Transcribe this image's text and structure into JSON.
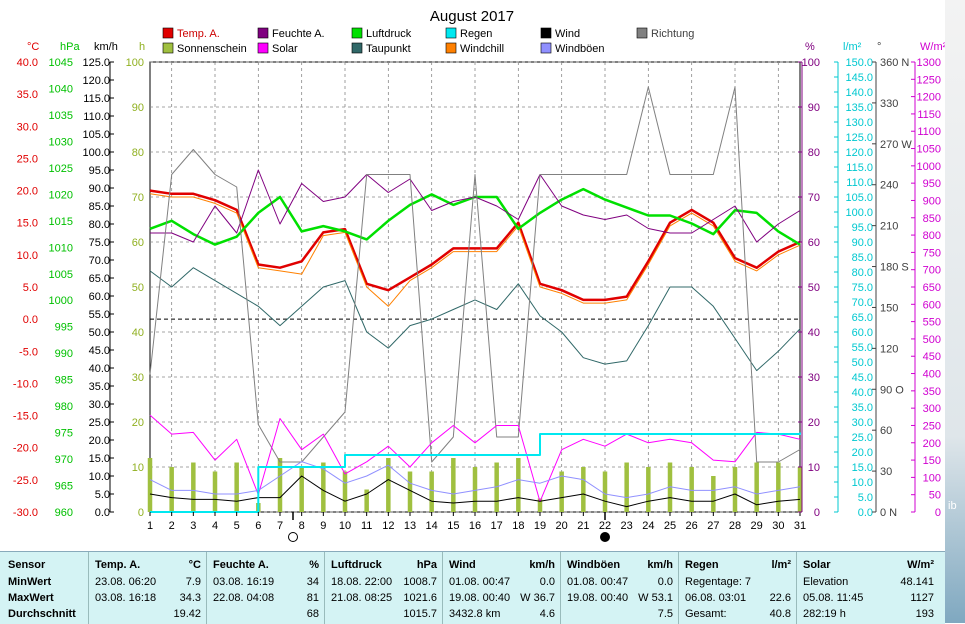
{
  "chart_data": {
    "type": "line",
    "title": "August 2017",
    "x": [
      1,
      2,
      3,
      4,
      5,
      6,
      7,
      8,
      9,
      10,
      11,
      12,
      13,
      14,
      15,
      16,
      17,
      18,
      19,
      20,
      21,
      22,
      23,
      24,
      25,
      26,
      27,
      28,
      29,
      30,
      31
    ],
    "x_ticks": [
      "1",
      "2",
      "3",
      "4",
      "5",
      "6",
      "7",
      "8",
      "9",
      "10",
      "11",
      "12",
      "13",
      "14",
      "15",
      "16",
      "17",
      "18",
      "19",
      "20",
      "21",
      "22",
      "23",
      "24",
      "25",
      "26",
      "27",
      "28",
      "29",
      "30",
      "31"
    ],
    "moon_phases": [
      {
        "day": 7.6,
        "phase": "full"
      },
      {
        "day": 22,
        "phase": "new"
      }
    ],
    "grid": true,
    "axes": [
      {
        "unit": "°C",
        "color": "#e00000",
        "range": [
          -30,
          40
        ],
        "ticks": [
          "40.0",
          "35.0",
          "30.0",
          "25.0",
          "20.0",
          "15.0",
          "10.0",
          "5.0",
          "0.0",
          "-5.0",
          "-10.0",
          "-15.0",
          "-20.0",
          "-25.0",
          "-30.0"
        ]
      },
      {
        "unit": "hPa",
        "color": "#00c000",
        "range": [
          960,
          1045
        ],
        "ticks": [
          "1045",
          "1040",
          "1035",
          "1030",
          "1025",
          "1020",
          "1015",
          "1010",
          "1005",
          "1000",
          "995",
          "990",
          "985",
          "980",
          "975",
          "970",
          "965",
          "960"
        ]
      },
      {
        "unit": "km/h",
        "color": "#000000",
        "range": [
          0,
          125
        ],
        "ticks": [
          "125.0",
          "120.0",
          "115.0",
          "110.0",
          "105.0",
          "100.0",
          "95.0",
          "90.0",
          "85.0",
          "80.0",
          "75.0",
          "70.0",
          "65.0",
          "60.0",
          "55.0",
          "50.0",
          "45.0",
          "40.0",
          "35.0",
          "30.0",
          "25.0",
          "20.0",
          "15.0",
          "10.0",
          "5.0",
          "0.0"
        ]
      },
      {
        "unit": "h",
        "color": "#90b020",
        "range": [
          0,
          100
        ],
        "ticks": [
          "100",
          "90",
          "80",
          "70",
          "60",
          "50",
          "40",
          "30",
          "20",
          "10",
          "0"
        ]
      },
      {
        "unit": "%",
        "color": "#800080",
        "range": [
          0,
          100
        ],
        "ticks": [
          "100",
          "90",
          "80",
          "70",
          "60",
          "50",
          "40",
          "30",
          "20",
          "10",
          "0"
        ]
      },
      {
        "unit": "l/m²",
        "color": "#00c8d0",
        "range": [
          0,
          150
        ],
        "ticks": [
          "150.0",
          "145.0",
          "140.0",
          "135.0",
          "130.0",
          "125.0",
          "120.0",
          "115.0",
          "110.0",
          "105.0",
          "100.0",
          "95.0",
          "90.0",
          "85.0",
          "80.0",
          "75.0",
          "70.0",
          "65.0",
          "60.0",
          "55.0",
          "50.0",
          "45.0",
          "40.0",
          "35.0",
          "30.0",
          "25.0",
          "20.0",
          "15.0",
          "10.0",
          "5.0",
          "0.0"
        ]
      },
      {
        "unit": "°",
        "color": "#404040",
        "range": [
          0,
          360
        ],
        "ticks": [
          "360 N",
          "330",
          "270 W",
          "240",
          "210",
          "180 S",
          "150",
          "120",
          "90 O",
          "60",
          "30",
          "0 N"
        ]
      },
      {
        "unit": "W/m²",
        "color": "#d000d0",
        "range": [
          0,
          1300
        ],
        "ticks": [
          "1300",
          "1250",
          "1200",
          "1150",
          "1100",
          "1050",
          "1000",
          "950",
          "900",
          "850",
          "800",
          "750",
          "700",
          "650",
          "600",
          "550",
          "500",
          "450",
          "400",
          "350",
          "300",
          "250",
          "200",
          "150",
          "100",
          "50",
          "0"
        ]
      }
    ],
    "legend": [
      {
        "name": "Temp. A.",
        "color": "#e00000"
      },
      {
        "name": "Feuchte A.",
        "color": "#800080"
      },
      {
        "name": "Luftdruck",
        "color": "#00e000"
      },
      {
        "name": "Regen",
        "color": "#00e8f0"
      },
      {
        "name": "Wind",
        "color": "#000000"
      },
      {
        "name": "Richtung",
        "color": "#808080"
      },
      {
        "name": "Sonnenschein",
        "color": "#a0c040"
      },
      {
        "name": "Solar",
        "color": "#ff00ff"
      },
      {
        "name": "Taupunkt",
        "color": "#306868"
      },
      {
        "name": "Windchill",
        "color": "#ff8000"
      },
      {
        "name": "Windböen",
        "color": "#9090ff"
      }
    ],
    "series": [
      {
        "name": "Temp. A.",
        "axis": 0,
        "color": "#e00000",
        "width": 2.5,
        "values": [
          20.0,
          19.5,
          19.5,
          18.5,
          17.0,
          8.5,
          8.0,
          9.0,
          13.5,
          14.0,
          5.5,
          4.5,
          6.5,
          8.5,
          11.0,
          11.0,
          11.0,
          15.0,
          5.5,
          4.5,
          3.0,
          3.0,
          3.5,
          9.0,
          15.0,
          17.0,
          15.0,
          9.5,
          8.0,
          10.5,
          12.0
        ]
      },
      {
        "name": "Windchill",
        "axis": 0,
        "color": "#ff8000",
        "width": 1,
        "values": [
          19.5,
          19.0,
          19.0,
          18.0,
          16.5,
          8.0,
          7.5,
          7.0,
          13.0,
          13.5,
          5.0,
          2.0,
          6.0,
          8.0,
          10.5,
          10.5,
          10.5,
          14.5,
          5.0,
          4.0,
          2.5,
          2.5,
          3.0,
          8.5,
          14.5,
          16.5,
          14.5,
          9.0,
          7.5,
          10.0,
          11.5
        ]
      },
      {
        "name": "Taupunkt",
        "axis": 0,
        "color": "#306868",
        "width": 1,
        "values": [
          7.5,
          5.0,
          8.0,
          6.0,
          4.0,
          2.0,
          -1.0,
          2.0,
          5.0,
          6.0,
          -2.0,
          -4.5,
          -1.0,
          0.0,
          1.5,
          3.0,
          1.5,
          5.5,
          0.5,
          -2.0,
          -6.0,
          -7.0,
          -6.5,
          -1.0,
          5.0,
          5.0,
          2.0,
          -3.0,
          -8.0,
          -5.0,
          -1.5
        ]
      },
      {
        "name": "Luftdruck",
        "axis": 1,
        "color": "#00e000",
        "width": 2.5,
        "values": [
          1013.5,
          1015.0,
          1012.5,
          1010.5,
          1012.0,
          1016.5,
          1019.5,
          1013.0,
          1014.0,
          1013.0,
          1011.5,
          1015.0,
          1018.0,
          1020.0,
          1018.0,
          1019.5,
          1019.5,
          1013.5,
          1016.5,
          1019.0,
          1021.0,
          1019.0,
          1017.5,
          1016.0,
          1016.0,
          1014.5,
          1012.5,
          1017.0,
          1016.5,
          1013.0,
          1010.5
        ]
      },
      {
        "name": "Feuchte A.",
        "axis": 4,
        "color": "#800080",
        "width": 1,
        "values": [
          62,
          62,
          60,
          68,
          62,
          76,
          64,
          73,
          69,
          70,
          75,
          71,
          74,
          67,
          69,
          70,
          68,
          65,
          75,
          68,
          66,
          65,
          66,
          63,
          62,
          62,
          65,
          68,
          60,
          64,
          67
        ]
      },
      {
        "name": "Richtung",
        "axis": 6,
        "color": "#808080",
        "width": 1,
        "values": [
          110,
          270,
          290,
          270,
          260,
          70,
          40,
          40,
          60,
          80,
          270,
          270,
          270,
          40,
          60,
          270,
          60,
          60,
          270,
          270,
          270,
          270,
          270,
          340,
          270,
          270,
          270,
          340,
          40,
          40,
          50
        ]
      },
      {
        "name": "Solar",
        "axis": 7,
        "color": "#ff00ff",
        "width": 1,
        "values": [
          280,
          225,
          230,
          150,
          210,
          50,
          270,
          180,
          225,
          110,
          145,
          190,
          130,
          200,
          250,
          200,
          250,
          250,
          30,
          180,
          210,
          190,
          225,
          200,
          210,
          200,
          150,
          145,
          230,
          225,
          210
        ]
      },
      {
        "name": "Windböen",
        "axis": 2,
        "color": "#9090ff",
        "width": 1,
        "values": [
          9,
          6,
          6,
          5,
          5,
          6,
          10,
          14,
          12,
          8,
          10,
          13,
          8,
          6,
          5,
          6,
          7,
          9,
          8,
          10,
          9,
          5,
          4,
          5,
          7,
          6,
          6,
          7,
          5,
          6,
          7
        ]
      },
      {
        "name": "Wind",
        "axis": 2,
        "color": "#000000",
        "width": 1,
        "values": [
          5,
          4,
          3.5,
          3.5,
          3,
          4,
          4,
          10,
          6,
          3,
          5,
          9,
          6,
          3,
          2.5,
          3,
          3,
          4,
          3,
          4,
          5,
          3,
          1.5,
          3,
          4,
          3,
          3,
          5,
          2,
          3,
          3.5
        ]
      },
      {
        "name": "Regen",
        "axis": 5,
        "color": "#00e8f0",
        "width": 2,
        "step": true,
        "values": [
          0,
          0,
          0,
          0,
          0,
          15,
          15,
          15,
          15,
          19,
          19,
          19,
          19,
          19,
          19,
          19,
          19,
          19,
          26,
          26,
          26,
          26,
          26,
          26,
          26,
          26,
          26,
          26,
          26,
          26,
          26.5
        ]
      }
    ],
    "bars": {
      "name": "Sonnenschein",
      "axis": 3,
      "color": "#a0c040",
      "values": [
        12,
        10,
        11,
        9,
        11,
        2,
        12,
        10,
        11,
        9,
        5,
        12,
        9,
        9,
        12,
        10,
        11,
        12,
        3,
        9,
        10,
        9,
        11,
        10,
        11,
        10,
        8,
        10,
        11,
        11,
        10
      ]
    },
    "zero_line_value": 0
  },
  "stats": {
    "sensor_label": "Sensor",
    "min_label": "MinWert",
    "max_label": "MaxWert",
    "avg_label": "Durchschnitt",
    "temp": {
      "title": "Temp. A.",
      "unit": "°C",
      "min_time": "23.08.  06:20",
      "min_val": "7.9",
      "max_time": "03.08.  16:18",
      "max_val": "34.3",
      "avg": "19.42"
    },
    "humidity": {
      "title": "Feuchte A.",
      "unit": "%",
      "min_time": "03.08.  16:19",
      "min_val": "34",
      "max_time": "22.08.  04:08",
      "max_val": "81",
      "avg": "68"
    },
    "pressure": {
      "title": "Luftdruck",
      "unit": "hPa",
      "min_time": "18.08.  22:00",
      "min_val": "1008.7",
      "max_time": "21.08.  08:25",
      "max_val": "1021.6",
      "avg": "1015.7"
    },
    "wind": {
      "title": "Wind",
      "unit": "km/h",
      "min_time": "01.08.  00:47",
      "min_val": "0.0",
      "max_time": "19.08.  00:40",
      "max_val": "W 36.7",
      "extra": "3432.8 km",
      "avg": "4.6"
    },
    "gust": {
      "title": "Windböen",
      "unit": "km/h",
      "min_time": "01.08.  00:47",
      "min_val": "0.0",
      "max_time": "19.08.  00:40",
      "max_val": "W 53.1",
      "avg": "7.5"
    },
    "rain": {
      "title": "Regen",
      "unit": "l/m²",
      "days_label": "Regentage: 7",
      "max_time": "06.08.  03:01",
      "max_val": "22.6",
      "total_label": "Gesamt:",
      "total": "40.8"
    },
    "solar": {
      "title": "Solar",
      "unit": "W/m²",
      "elev_label": "Elevation",
      "elev_val": "48.141",
      "max_time": "05.08.  11:45",
      "max_val": "1127",
      "sun_hours": "282:19 h",
      "avg": "193"
    }
  },
  "edge_text": "ib"
}
